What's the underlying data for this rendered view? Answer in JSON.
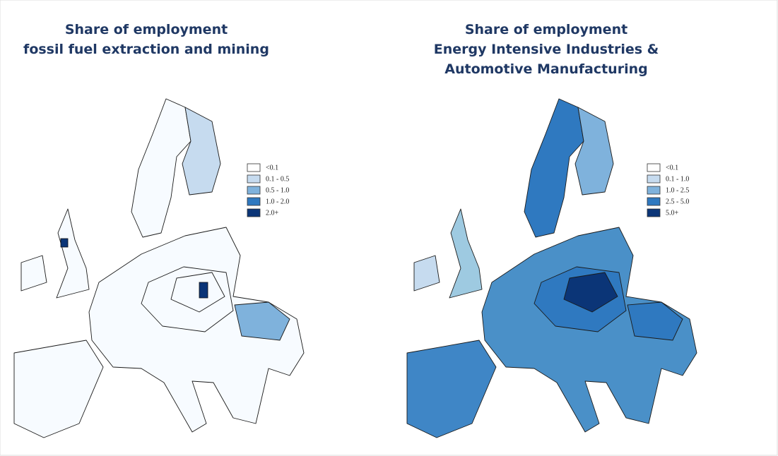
{
  "maps": [
    {
      "title": [
        "Share of employment",
        "fossil fuel extraction and mining"
      ],
      "legend": [
        {
          "label": "<0.1",
          "color": "#ffffff"
        },
        {
          "label": "0.1 - 0.5",
          "color": "#c6dbef"
        },
        {
          "label": "0.5 - 1.0",
          "color": "#7fb2dc"
        },
        {
          "label": "1.0 - 2.0",
          "color": "#2f79c0"
        },
        {
          "label": "2.0+",
          "color": "#0b3577"
        }
      ]
    },
    {
      "title": [
        "Share of employment",
        "Energy Intensive Industries &",
        "Automotive Manufacturing"
      ],
      "legend": [
        {
          "label": "<0.1",
          "color": "#ffffff"
        },
        {
          "label": "0.1 - 1.0",
          "color": "#c6dbef"
        },
        {
          "label": "1.0 - 2.5",
          "color": "#7fb2dc"
        },
        {
          "label": "2.5 - 5.0",
          "color": "#2f79c0"
        },
        {
          "label": "5.0+",
          "color": "#0b3577"
        }
      ]
    }
  ]
}
